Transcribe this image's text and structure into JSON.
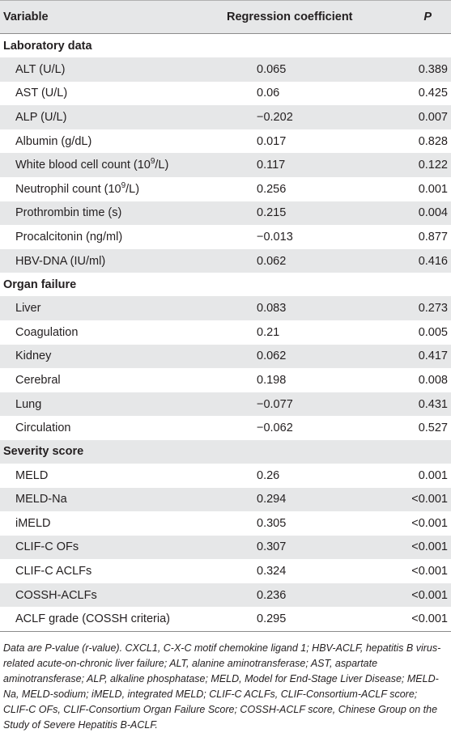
{
  "header": {
    "variable": "Variable",
    "regression": "Regression coefficient",
    "p": "P"
  },
  "sections": [
    {
      "title": "Laboratory data",
      "rows": [
        {
          "label": "ALT (U/L)",
          "coef": "0.065",
          "p": "0.389"
        },
        {
          "label": "AST (U/L)",
          "coef": "0.06",
          "p": "0.425"
        },
        {
          "label": "ALP (U/L)",
          "coef": "−0.202",
          "p": "0.007"
        },
        {
          "label": "Albumin (g/dL)",
          "coef": "0.017",
          "p": "0.828"
        },
        {
          "label_pre": "White blood cell count (10",
          "label_sup": "9",
          "label_post": "/L)",
          "coef": "0.117",
          "p": "0.122"
        },
        {
          "label_pre": "Neutrophil count (10",
          "label_sup": "9",
          "label_post": "/L)",
          "coef": "0.256",
          "p": "0.001"
        },
        {
          "label": "Prothrombin time (s)",
          "coef": "0.215",
          "p": "0.004"
        },
        {
          "label": "Procalcitonin (ng/ml)",
          "coef": "−0.013",
          "p": "0.877"
        },
        {
          "label": "HBV-DNA (IU/ml)",
          "coef": "0.062",
          "p": "0.416"
        }
      ]
    },
    {
      "title": "Organ failure",
      "rows": [
        {
          "label": "Liver",
          "coef": "0.083",
          "p": "0.273"
        },
        {
          "label": "Coagulation",
          "coef": "0.21",
          "p": "0.005"
        },
        {
          "label": "Kidney",
          "coef": "0.062",
          "p": "0.417"
        },
        {
          "label": "Cerebral",
          "coef": "0.198",
          "p": "0.008"
        },
        {
          "label": "Lung",
          "coef": "−0.077",
          "p": "0.431"
        },
        {
          "label": "Circulation",
          "coef": "−0.062",
          "p": "0.527"
        }
      ]
    },
    {
      "title": "Severity score",
      "rows": [
        {
          "label": "MELD",
          "coef": "0.26",
          "p": "0.001"
        },
        {
          "label": "MELD-Na",
          "coef": "0.294",
          "p": "<0.001"
        },
        {
          "label": "iMELD",
          "coef": "0.305",
          "p": "<0.001"
        },
        {
          "label": "CLIF-C OFs",
          "coef": "0.307",
          "p": "<0.001"
        },
        {
          "label": "CLIF-C ACLFs",
          "coef": "0.324",
          "p": "<0.001"
        },
        {
          "label": "COSSH-ACLFs",
          "coef": "0.236",
          "p": "<0.001"
        },
        {
          "label": "ACLF grade (COSSH criteria)",
          "coef": "0.295",
          "p": "<0.001"
        }
      ]
    }
  ],
  "footnote": "Data are P-value (r-value). CXCL1, C-X-C motif chemokine ligand 1; HBV-ACLF, hepatitis B virus-related acute-on-chronic liver failure; ALT, alanine aminotransferase; AST, aspartate aminotransferase; ALP, alkaline phosphatase; MELD, Model for End-Stage Liver Disease; MELD-Na, MELD-sodium; iMELD, integrated MELD; CLIF-C ACLFs, CLIF-Consortium-ACLF score; CLIF-C OFs, CLIF-Consortium Organ Failure Score; COSSH-ACLF score, Chinese Group on the Study of Severe Hepatitis B-ACLF."
}
